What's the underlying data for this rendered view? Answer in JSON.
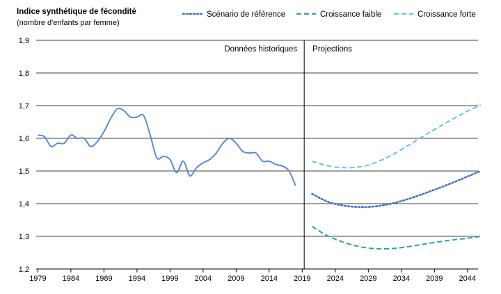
{
  "chart_data": {
    "type": "line",
    "title": "Indice synthétique de fécondité",
    "subtitle": "(nombre d'enfants par femme)",
    "xlabel": "",
    "ylabel": "",
    "xlim": [
      1979,
      2046
    ],
    "ylim": [
      1.2,
      1.9
    ],
    "y_ticks": [
      "1,2",
      "1,3",
      "1,4",
      "1,5",
      "1,6",
      "1,7",
      "1,8",
      "1,9"
    ],
    "y_tick_values": [
      1.2,
      1.3,
      1.4,
      1.5,
      1.6,
      1.7,
      1.8,
      1.9
    ],
    "x_ticks": [
      "1979",
      "1984",
      "1989",
      "1994",
      "1999",
      "2004",
      "2009",
      "2014",
      "2019",
      "2024",
      "2029",
      "2034",
      "2039",
      "2044"
    ],
    "x_tick_values": [
      1979,
      1984,
      1989,
      1994,
      1999,
      2004,
      2009,
      2014,
      2019,
      2024,
      2029,
      2034,
      2039,
      2044
    ],
    "grid": "horizontal",
    "legend_position": "top-right",
    "divider_x": 2019.3,
    "annotations": [
      "Données historiques",
      "Projections"
    ],
    "series": [
      {
        "name": "",
        "color": "#5b87dd",
        "style": "solid",
        "x": [
          1979,
          1980,
          1981,
          1982,
          1983,
          1984,
          1985,
          1986,
          1987,
          1988,
          1989,
          1990,
          1991,
          1992,
          1993,
          1994,
          1995,
          1996,
          1997,
          1998,
          1999,
          2000,
          2001,
          2002,
          2003,
          2004,
          2005,
          2006,
          2007,
          2008,
          2009,
          2010,
          2011,
          2012,
          2013,
          2014,
          2015,
          2016,
          2017,
          2018
        ],
        "values": [
          1.61,
          1.605,
          1.575,
          1.585,
          1.585,
          1.61,
          1.6,
          1.6,
          1.575,
          1.59,
          1.62,
          1.66,
          1.69,
          1.685,
          1.665,
          1.665,
          1.67,
          1.61,
          1.54,
          1.545,
          1.535,
          1.495,
          1.53,
          1.485,
          1.51,
          1.525,
          1.535,
          1.555,
          1.585,
          1.6,
          1.585,
          1.56,
          1.555,
          1.555,
          1.53,
          1.53,
          1.52,
          1.515,
          1.5,
          1.455
        ]
      },
      {
        "name": "Scénario de référence",
        "color": "#4472c4",
        "style": "dotted",
        "x": [
          2020.5,
          2023,
          2026,
          2029,
          2032,
          2035,
          2038,
          2041,
          2044,
          2046
        ],
        "values": [
          1.43,
          1.405,
          1.392,
          1.39,
          1.398,
          1.414,
          1.435,
          1.458,
          1.483,
          1.5
        ]
      },
      {
        "name": "Croissance faible",
        "color": "#1fa3a8",
        "style": "dashed",
        "x": [
          2020.5,
          2023,
          2026,
          2029,
          2032,
          2035,
          2038,
          2041,
          2044,
          2046
        ],
        "values": [
          1.33,
          1.3,
          1.277,
          1.264,
          1.262,
          1.268,
          1.278,
          1.287,
          1.294,
          1.3
        ]
      },
      {
        "name": "Croissance forte",
        "color": "#5bc4ec",
        "style": "dashed",
        "x": [
          2020.5,
          2023,
          2026,
          2029,
          2032,
          2035,
          2038,
          2041,
          2044,
          2046
        ],
        "values": [
          1.53,
          1.515,
          1.51,
          1.518,
          1.543,
          1.578,
          1.615,
          1.65,
          1.683,
          1.702
        ]
      }
    ]
  }
}
